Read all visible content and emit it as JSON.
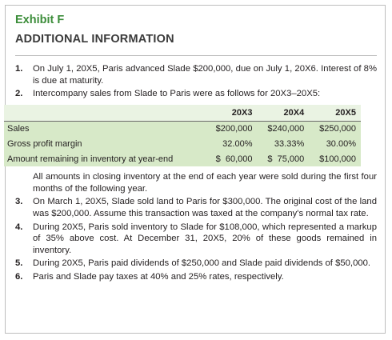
{
  "header": {
    "exhibit": "Exhibit F",
    "title": "ADDITIONAL INFORMATION"
  },
  "items": [
    {
      "number": "1.",
      "text": "On July 1, 20X5, Paris advanced Slade $200,000, due on July 1, 20X6. Interest of 8% is due at maturity."
    },
    {
      "number": "2.",
      "text": "Intercompany sales from Slade to Paris were as follows for 20X3–20X5:"
    },
    {
      "number": "3.",
      "text": "On March 1, 20X5, Slade sold land to Paris for $300,000. The original cost of the land was $200,000. Assume this transaction was taxed at the company's normal tax rate."
    },
    {
      "number": "4.",
      "text": "During 20X5, Paris sold inventory to Slade for $108,000, which represented a markup of 35% above cost. At December 31, 20X5, 20% of these goods remained in inventory."
    },
    {
      "number": "5.",
      "text": "During 20X5, Paris paid dividends of $250,000 and Slade paid dividends of $50,000."
    },
    {
      "number": "6.",
      "text": "Paris and Slade pay taxes at 40% and 25% rates, respectively."
    }
  ],
  "table": {
    "columns": [
      "20X3",
      "20X4",
      "20X5"
    ],
    "rows": [
      [
        "Sales",
        "$200,000",
        "$240,000",
        "$250,000"
      ],
      [
        "Gross profit margin",
        "32.00%",
        "33.33%",
        "30.00%"
      ],
      [
        "Amount remaining in inventory at year-end",
        "$  60,000",
        "$  75,000",
        "$100,000"
      ]
    ]
  },
  "table_note": "All amounts in closing inventory at the end of each year were sold during the first four months of the following year."
}
